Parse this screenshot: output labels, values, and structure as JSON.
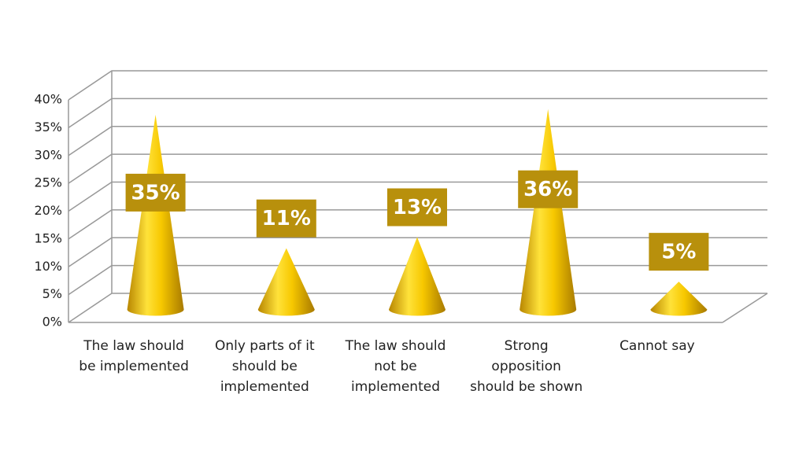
{
  "chart_data": {
    "type": "cone",
    "categories": [
      "The law should\nbe implemented",
      "Only parts of it\nshould be\nimplemented",
      "The law should\nnot be\nimplemented",
      "Strong\nopposition\nshould be shown",
      "Cannot say"
    ],
    "values": [
      35,
      11,
      13,
      36,
      5
    ],
    "value_labels": [
      "35%",
      "11%",
      "13%",
      "36%",
      "5%"
    ],
    "color": "#f2c200",
    "ylim": [
      0,
      40
    ],
    "yticks": [
      {
        "value": 0,
        "label": "0%"
      },
      {
        "value": 5,
        "label": "5%"
      },
      {
        "value": 10,
        "label": "10%"
      },
      {
        "value": 15,
        "label": "15%"
      },
      {
        "value": 20,
        "label": "20%"
      },
      {
        "value": 25,
        "label": "25%"
      },
      {
        "value": 30,
        "label": "30%"
      },
      {
        "value": 35,
        "label": "35%"
      },
      {
        "value": 40,
        "label": "40%"
      }
    ],
    "grid": true
  }
}
